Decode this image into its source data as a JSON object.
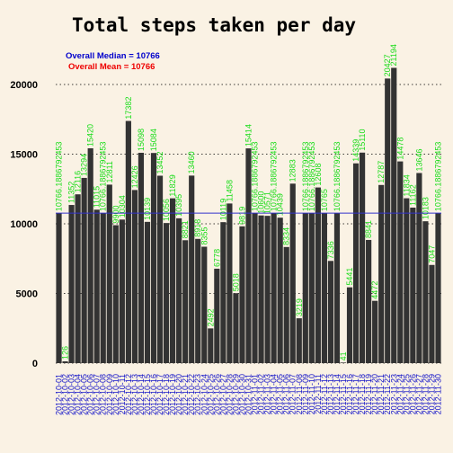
{
  "chart_data": {
    "type": "bar",
    "title": "Total steps taken per day",
    "xlabel": "",
    "ylabel": "",
    "ylim": [
      0,
      22000
    ],
    "yticks": [
      0,
      5000,
      10000,
      15000,
      20000
    ],
    "grid": "horizontal dotted",
    "categories": [
      "2012-10-01",
      "2012-10-02",
      "2012-10-03",
      "2012-10-04",
      "2012-10-05",
      "2012-10-06",
      "2012-10-07",
      "2012-10-08",
      "2012-10-09",
      "2012-10-10",
      "2012-10-11",
      "2012-10-12",
      "2012-10-13",
      "2012-10-14",
      "2012-10-15",
      "2012-10-16",
      "2012-10-17",
      "2012-10-18",
      "2012-10-19",
      "2012-10-20",
      "2012-10-21",
      "2012-10-22",
      "2012-10-23",
      "2012-10-24",
      "2012-10-25",
      "2012-10-26",
      "2012-10-27",
      "2012-10-28",
      "2012-10-29",
      "2012-10-30",
      "2012-10-31",
      "2012-11-01",
      "2012-11-02",
      "2012-11-03",
      "2012-11-04",
      "2012-11-05",
      "2012-11-06",
      "2012-11-07",
      "2012-11-08",
      "2012-11-09",
      "2012-11-10",
      "2012-11-11",
      "2012-11-12",
      "2012-11-13",
      "2012-11-14",
      "2012-11-15",
      "2012-11-16",
      "2012-11-17",
      "2012-11-18",
      "2012-11-19",
      "2012-11-20",
      "2012-11-21",
      "2012-11-22",
      "2012-11-23",
      "2012-11-24",
      "2012-11-25",
      "2012-11-26",
      "2012-11-27",
      "2012-11-28",
      "2012-11-29",
      "2012-11-30"
    ],
    "values": [
      10766.1886792453,
      126,
      11352,
      12116,
      13294,
      15420,
      11015,
      10766.1886792453,
      12811,
      9900,
      10304,
      17382,
      12426,
      15098,
      10139,
      15084,
      13452,
      10056,
      11829,
      10395,
      8821,
      13460,
      8918,
      8355,
      2492,
      6778,
      10119,
      11458,
      5018,
      9819,
      15414,
      10766.1886792453,
      10600,
      10571,
      10766.1886792453,
      10439,
      8334,
      12883,
      3219,
      10766.1886792453,
      10766.1886792453,
      12608,
      10765,
      7336,
      10766.1886792453,
      41,
      5441,
      14339,
      15110,
      8841,
      4472,
      12787,
      20427,
      21194,
      14478,
      11834,
      11162,
      13646,
      10183,
      7047,
      10766.1886792453
    ],
    "value_labels": [
      "10766.1886792453",
      "126",
      "11352",
      "12116",
      "13294",
      "15420",
      "11015",
      "10766.1886792453",
      "12811",
      "9900",
      "10304",
      "17382",
      "12426",
      "15098",
      "10139",
      "15084",
      "13452",
      "10056",
      "11829",
      "10395",
      "8821",
      "13460",
      "8918",
      "8355",
      "2492",
      "6778",
      "10119",
      "11458",
      "5018",
      "9819",
      "15414",
      "10766.1886792453",
      "10600",
      "10571",
      "10766.1886792453",
      "10439",
      "8334",
      "12883",
      "3219",
      "10766.1886792453",
      "10766.1886792453",
      "12608",
      "10765",
      "7336",
      "10766.1886792453",
      "41",
      "5441",
      "14339",
      "15110",
      "8841",
      "4472",
      "12787",
      "20427",
      "21194",
      "14478",
      "11834",
      "11162",
      "13646",
      "10183",
      "7047",
      "10766.1886792453"
    ],
    "annotations": [
      {
        "text": "Overall Median = 10766",
        "color": "#0000cc"
      },
      {
        "text": "Overall Mean = 10766",
        "color": "#ee0000"
      }
    ],
    "reference_line": {
      "value": 10766.19,
      "color": "#3333cc"
    },
    "colors": {
      "bar": "#333333",
      "value_label": "#16dc16",
      "tick_label": "#1414c8",
      "background": "#faf2e4"
    }
  }
}
